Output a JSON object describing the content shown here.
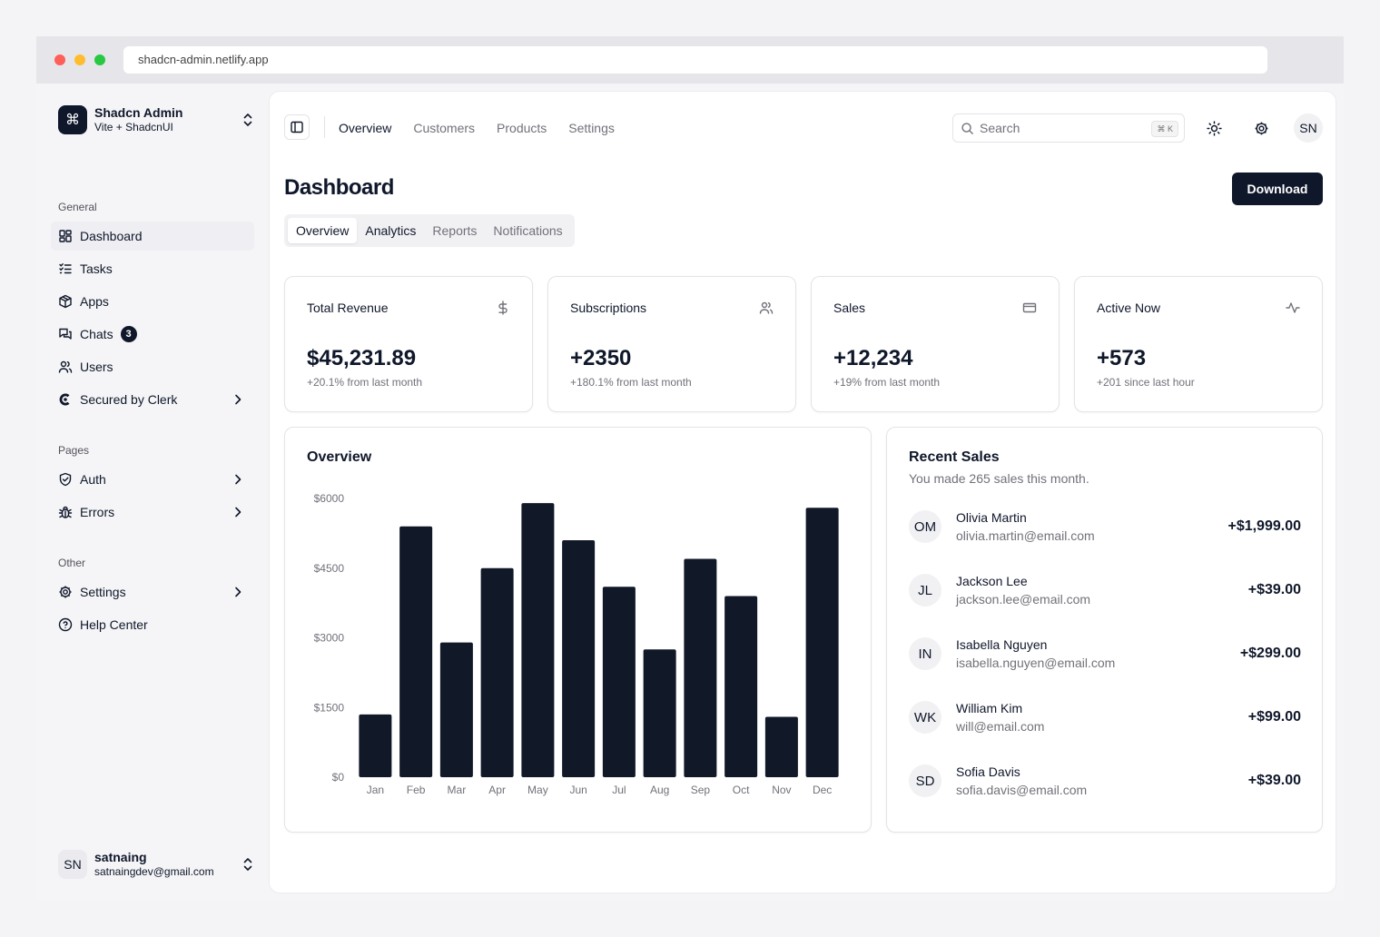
{
  "browser": {
    "url": "shadcn-admin.netlify.app"
  },
  "sidebar": {
    "team": {
      "name": "Shadcn Admin",
      "plan": "Vite + ShadcnUI",
      "logo_glyph": "⌘"
    },
    "groups": [
      {
        "label": "General",
        "items": [
          {
            "label": "Dashboard",
            "icon": "layout-dashboard-icon",
            "active": true
          },
          {
            "label": "Tasks",
            "icon": "list-checks-icon"
          },
          {
            "label": "Apps",
            "icon": "package-icon"
          },
          {
            "label": "Chats",
            "icon": "messages-icon",
            "badge": "3"
          },
          {
            "label": "Users",
            "icon": "users-icon"
          },
          {
            "label": "Secured by Clerk",
            "icon": "clerk-icon",
            "chevron": true
          }
        ]
      },
      {
        "label": "Pages",
        "items": [
          {
            "label": "Auth",
            "icon": "shield-check-icon",
            "chevron": true
          },
          {
            "label": "Errors",
            "icon": "bug-icon",
            "chevron": true
          }
        ]
      },
      {
        "label": "Other",
        "items": [
          {
            "label": "Settings",
            "icon": "gear-icon",
            "chevron": true
          },
          {
            "label": "Help Center",
            "icon": "help-circle-icon"
          }
        ]
      }
    ],
    "user": {
      "initials": "SN",
      "name": "satnaing",
      "email": "satnaingdev@gmail.com"
    }
  },
  "header": {
    "nav": [
      "Overview",
      "Customers",
      "Products",
      "Settings"
    ],
    "search": {
      "placeholder": "Search",
      "shortcut": "⌘ K"
    },
    "avatar": "SN"
  },
  "page": {
    "title": "Dashboard",
    "download_label": "Download",
    "tabs": [
      "Overview",
      "Analytics",
      "Reports",
      "Notifications"
    ]
  },
  "stats": [
    {
      "title": "Total Revenue",
      "value": "$45,231.89",
      "sub": "+20.1% from last month",
      "icon": "dollar-icon"
    },
    {
      "title": "Subscriptions",
      "value": "+2350",
      "sub": "+180.1% from last month",
      "icon": "users-icon"
    },
    {
      "title": "Sales",
      "value": "+12,234",
      "sub": "+19% from last month",
      "icon": "credit-card-icon"
    },
    {
      "title": "Active Now",
      "value": "+573",
      "sub": "+201 since last hour",
      "icon": "activity-icon"
    }
  ],
  "overview": {
    "title": "Overview"
  },
  "chart_data": {
    "type": "bar",
    "title": "Overview",
    "categories": [
      "Jan",
      "Feb",
      "Mar",
      "Apr",
      "May",
      "Jun",
      "Jul",
      "Aug",
      "Sep",
      "Oct",
      "Nov",
      "Dec"
    ],
    "values": [
      1350,
      5400,
      2900,
      4500,
      5900,
      5100,
      4100,
      2750,
      4700,
      3900,
      1300,
      5800
    ],
    "yticks": [
      "$0",
      "$1500",
      "$3000",
      "$4500",
      "$6000"
    ],
    "ytick_values": [
      0,
      1500,
      3000,
      4500,
      6000
    ],
    "ylim": [
      0,
      6000
    ],
    "bar_color": "#111827"
  },
  "recent_sales": {
    "title": "Recent Sales",
    "subtitle": "You made 265 sales this month.",
    "rows": [
      {
        "initials": "OM",
        "name": "Olivia Martin",
        "email": "olivia.martin@email.com",
        "amount": "+$1,999.00"
      },
      {
        "initials": "JL",
        "name": "Jackson Lee",
        "email": "jackson.lee@email.com",
        "amount": "+$39.00"
      },
      {
        "initials": "IN",
        "name": "Isabella Nguyen",
        "email": "isabella.nguyen@email.com",
        "amount": "+$299.00"
      },
      {
        "initials": "WK",
        "name": "William Kim",
        "email": "will@email.com",
        "amount": "+$99.00"
      },
      {
        "initials": "SD",
        "name": "Sofia Davis",
        "email": "sofia.davis@email.com",
        "amount": "+$39.00"
      }
    ]
  }
}
